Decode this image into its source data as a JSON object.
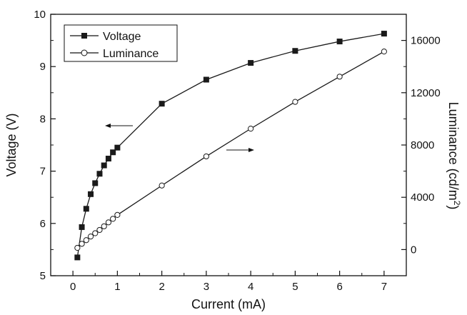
{
  "chart_data": {
    "type": "line",
    "title": "",
    "xlabel": "Current (mA)",
    "ylabel_left": "Voltage (V)",
    "ylabel_right_main": "Luminance (cd/m",
    "ylabel_right_sup": "2",
    "ylabel_right_end": ")",
    "xlim": [
      -0.5,
      7.5
    ],
    "ylim_left": [
      5,
      10
    ],
    "ylim_right": [
      -2000,
      18000
    ],
    "x_ticks": [
      "0",
      "1",
      "2",
      "3",
      "4",
      "5",
      "6",
      "7"
    ],
    "y_left_ticks": [
      "5",
      "6",
      "7",
      "8",
      "9",
      "10"
    ],
    "y_right_ticks": [
      "0",
      "4000",
      "8000",
      "12000",
      "16000"
    ],
    "legend_position": "top-left",
    "grid": false,
    "series": [
      {
        "name": "Voltage",
        "axis": "left",
        "marker": "filled-square",
        "x": [
          0.1,
          0.2,
          0.3,
          0.4,
          0.5,
          0.6,
          0.7,
          0.8,
          0.9,
          1.0,
          2.0,
          3.0,
          4.0,
          5.0,
          6.0,
          7.0
        ],
        "y": [
          5.35,
          5.93,
          6.28,
          6.56,
          6.77,
          6.95,
          7.11,
          7.24,
          7.36,
          7.45,
          8.29,
          8.75,
          9.07,
          9.3,
          9.48,
          9.63
        ]
      },
      {
        "name": "Luminance",
        "axis": "right",
        "marker": "open-circle",
        "x": [
          0.1,
          0.2,
          0.3,
          0.4,
          0.5,
          0.6,
          0.7,
          0.8,
          0.9,
          1.0,
          2.0,
          3.0,
          4.0,
          5.0,
          6.0,
          7.0
        ],
        "y": [
          130,
          440,
          720,
          1000,
          1250,
          1500,
          1780,
          2080,
          2350,
          2650,
          4900,
          7130,
          9250,
          11300,
          13230,
          15150
        ]
      }
    ]
  },
  "colors": {
    "line": "#1a1a1a",
    "marker_fill": "#1a1a1a",
    "open_marker_fill": "#ffffff"
  }
}
